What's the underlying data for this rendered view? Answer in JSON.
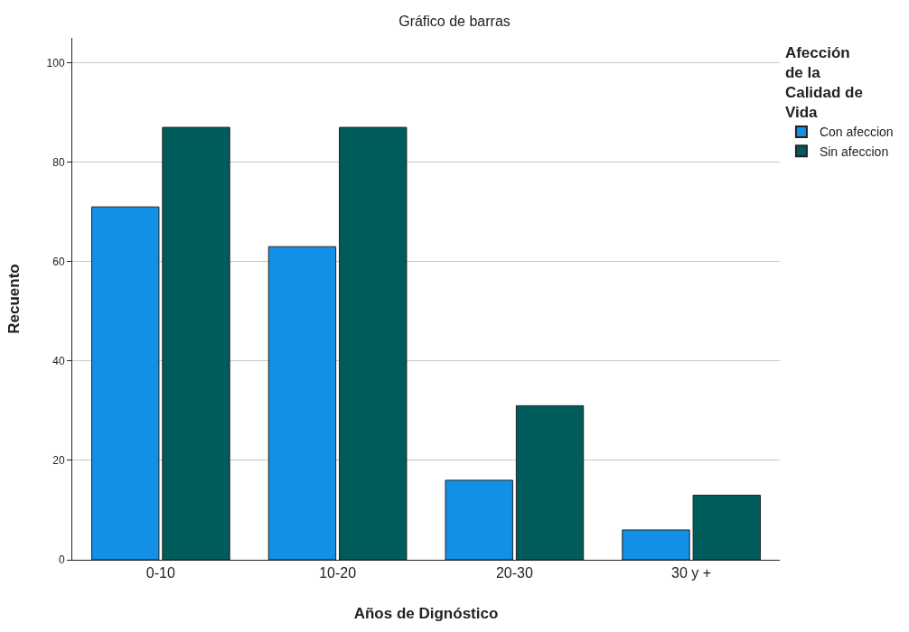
{
  "chart_data": {
    "type": "bar",
    "title": "Gráfico de barras",
    "xlabel": "Años de Dignóstico",
    "ylabel": "Recuento",
    "legend_title": "Afección\nde la\nCalidad de\nVida",
    "categories": [
      "0-10",
      "10-20",
      "20-30",
      "30 y +"
    ],
    "series": [
      {
        "name": "Con afeccion",
        "color": "#1190e6",
        "values": [
          71,
          63,
          16,
          6
        ]
      },
      {
        "name": "Sin afeccion",
        "color": "#005c5a",
        "values": [
          87,
          87,
          31,
          13
        ]
      }
    ],
    "ylim": [
      0,
      105
    ],
    "yticks": [
      0,
      20,
      40,
      60,
      80,
      100
    ],
    "grid": "y",
    "legend": "right"
  }
}
